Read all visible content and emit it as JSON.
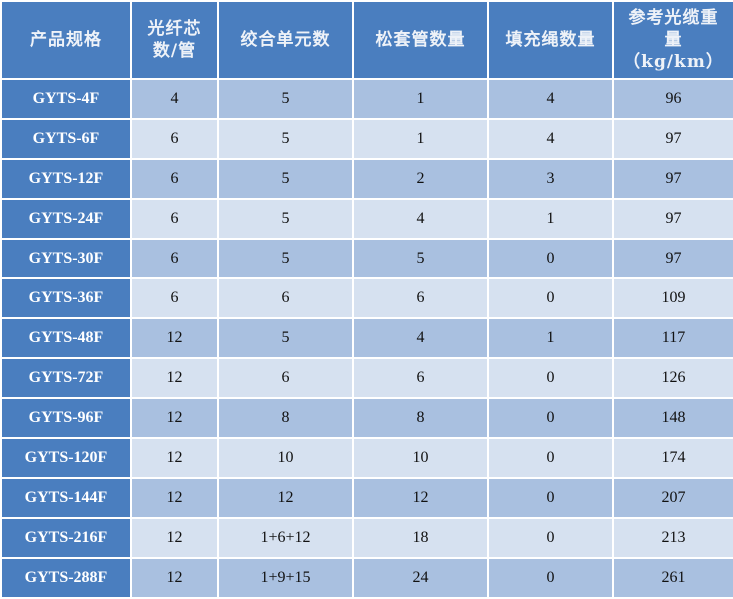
{
  "table": {
    "headers": [
      [
        "产品规格"
      ],
      [
        "光纤芯",
        "数/管"
      ],
      [
        "绞合单元数"
      ],
      [
        "松套管数量"
      ],
      [
        "填充绳数量"
      ],
      [
        "参考光缆重",
        "量",
        "（kg/km）"
      ]
    ],
    "rows": [
      [
        "GYTS-4F",
        "4",
        "5",
        "1",
        "4",
        "96"
      ],
      [
        "GYTS-6F",
        "6",
        "5",
        "1",
        "4",
        "97"
      ],
      [
        "GYTS-12F",
        "6",
        "5",
        "2",
        "3",
        "97"
      ],
      [
        "GYTS-24F",
        "6",
        "5",
        "4",
        "1",
        "97"
      ],
      [
        "GYTS-30F",
        "6",
        "5",
        "5",
        "0",
        "97"
      ],
      [
        "GYTS-36F",
        "6",
        "6",
        "6",
        "0",
        "109"
      ],
      [
        "GYTS-48F",
        "12",
        "5",
        "4",
        "1",
        "117"
      ],
      [
        "GYTS-72F",
        "12",
        "6",
        "6",
        "0",
        "126"
      ],
      [
        "GYTS-96F",
        "12",
        "8",
        "8",
        "0",
        "148"
      ],
      [
        "GYTS-120F",
        "12",
        "10",
        "10",
        "0",
        "174"
      ],
      [
        "GYTS-144F",
        "12",
        "12",
        "12",
        "0",
        "207"
      ],
      [
        "GYTS-216F",
        "12",
        "1+6+12",
        "18",
        "0",
        "213"
      ],
      [
        "GYTS-288F",
        "12",
        "1+9+15",
        "24",
        "0",
        "261"
      ]
    ]
  },
  "colors": {
    "header": "#4a7ebf",
    "row_dark": "#a9c0e0",
    "row_light": "#d6e1f0"
  }
}
